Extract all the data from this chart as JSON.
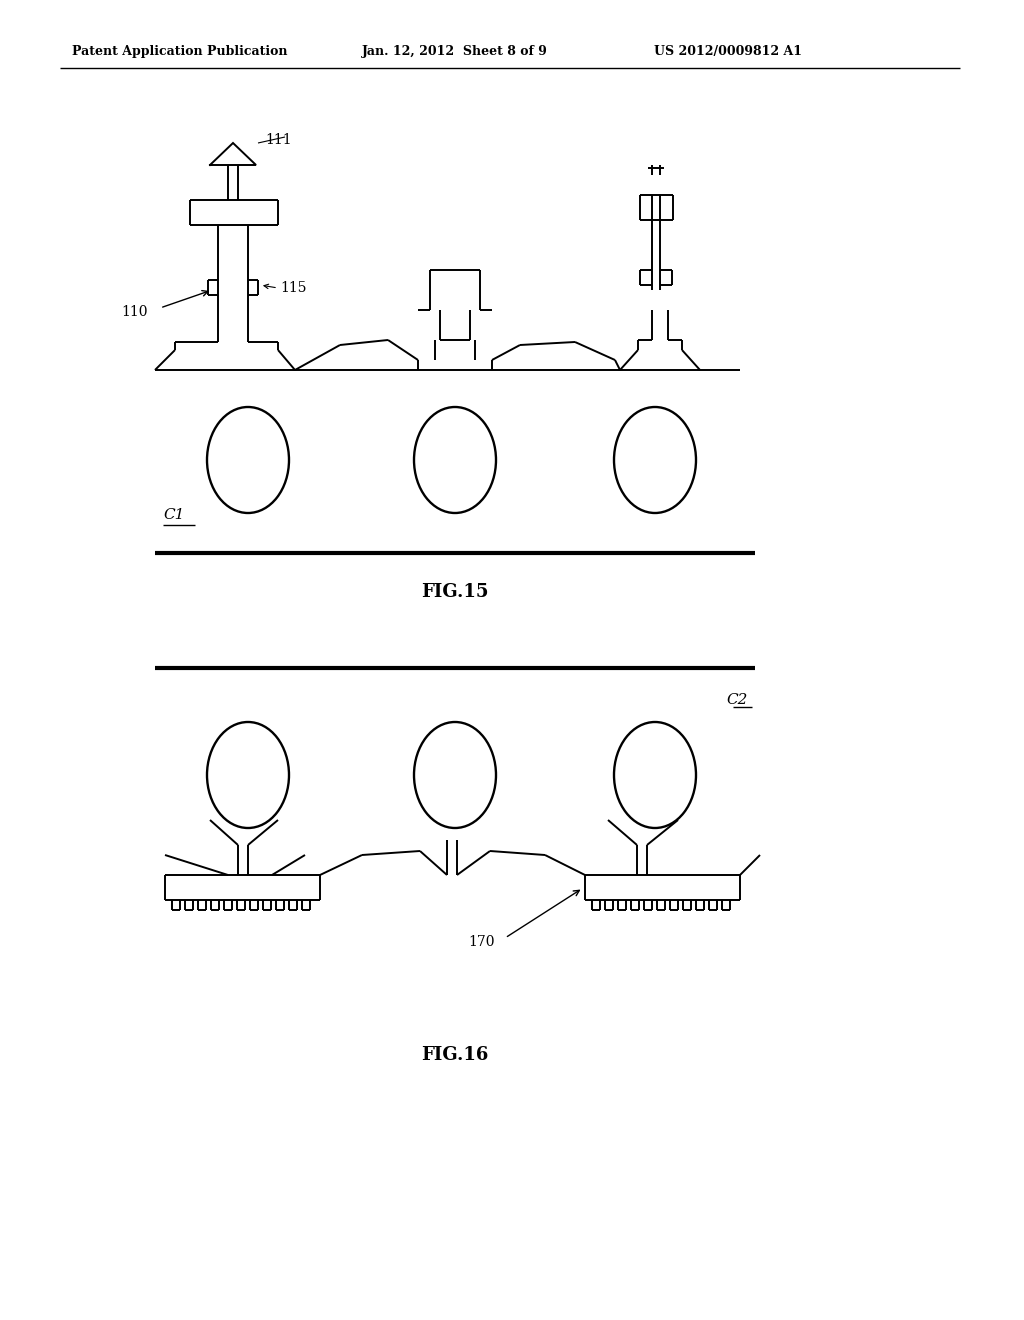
{
  "header_left": "Patent Application Publication",
  "header_mid": "Jan. 12, 2012  Sheet 8 of 9",
  "header_right": "US 2012/0009812 A1",
  "fig15_label": "FIG.15",
  "fig16_label": "FIG.16",
  "label_111": "111",
  "label_110": "110",
  "label_115": "115",
  "label_170": "170",
  "label_C1": "C1",
  "label_C2": "C2",
  "bg_color": "#ffffff",
  "line_color": "#000000",
  "lw": 1.4,
  "lw_thick": 3.0
}
